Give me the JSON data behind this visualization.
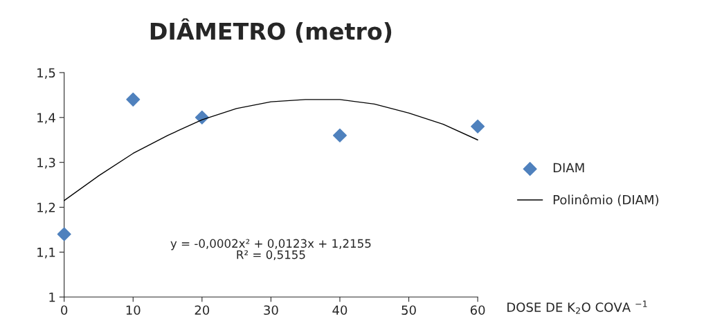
{
  "chart_data": {
    "type": "scatter",
    "title": "DIÂMETRO (metro)",
    "xlabel": "DOSE DE K$_{2}$O COVA $^{−1}$",
    "series": [
      {
        "name": "DIAM",
        "type": "scatter",
        "color": "#4f81bd",
        "marker": "diamond",
        "x": [
          0,
          10,
          20,
          40,
          60
        ],
        "values": [
          1.14,
          1.44,
          1.4,
          1.36,
          1.38
        ]
      },
      {
        "name": "Polinômio (DIAM)",
        "type": "line",
        "color": "#000000",
        "line_style": "solid",
        "x": [
          0,
          5,
          10,
          15,
          20,
          25,
          30,
          35,
          40,
          45,
          50,
          55,
          60
        ],
        "values": [
          1.215,
          1.27,
          1.32,
          1.36,
          1.395,
          1.42,
          1.435,
          1.44,
          1.44,
          1.43,
          1.41,
          1.385,
          1.35
        ]
      }
    ],
    "xlim": [
      0,
      60
    ],
    "xticks": [
      0,
      10,
      20,
      30,
      40,
      50,
      60
    ],
    "ylim": [
      1,
      1.5
    ],
    "yticks": [
      1,
      {
        "value": 1.1,
        "label": "1,1"
      },
      {
        "value": 1.2,
        "label": "1,2"
      },
      {
        "value": 1.3,
        "label": "1,3"
      },
      {
        "value": 1.4,
        "label": "1,4"
      },
      {
        "value": 1.5,
        "label": "1,5"
      }
    ],
    "annotations": [
      "y = -0,0002x² + 0,0123x + 1,2155",
      "R² = 0,5155"
    ],
    "grid": false,
    "legend": "right"
  }
}
